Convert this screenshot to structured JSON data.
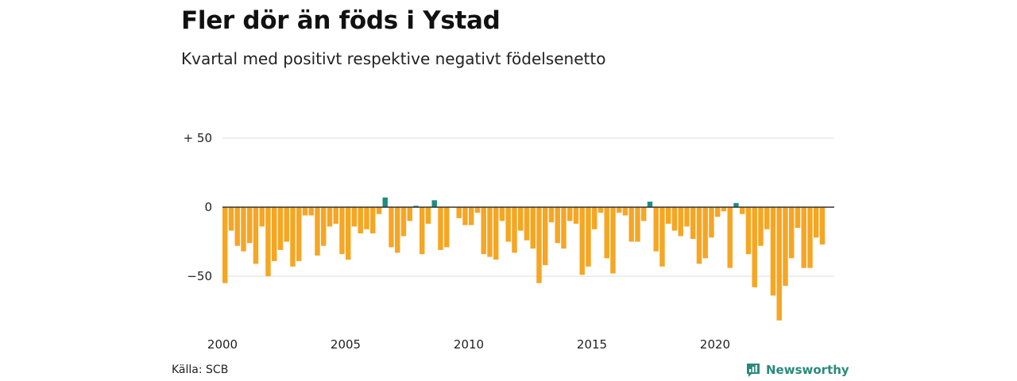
{
  "header": {
    "title": "Fler dör än föds i Ystad",
    "subtitle": "Kvartal med positivt respektive negativt födelsenetto"
  },
  "footer": {
    "source": "Källa: SCB",
    "brand": "Newsworthy"
  },
  "colors": {
    "negative": "#F5A623",
    "positive": "#1E8C82",
    "grid": "#DDDDDD",
    "zero_line": "#333333",
    "brand": "#2A8A7A"
  },
  "chart_data": {
    "type": "bar",
    "ylim": [
      -85,
      55
    ],
    "y_ticks": [
      {
        "value": 50,
        "label": "+ 50"
      },
      {
        "value": 0,
        "label": "0"
      },
      {
        "value": -50,
        "label": "−50"
      }
    ],
    "x_ticks": [
      {
        "year": 2000,
        "label": "2000"
      },
      {
        "year": 2005,
        "label": "2005"
      },
      {
        "year": 2010,
        "label": "2010"
      },
      {
        "year": 2015,
        "label": "2015"
      },
      {
        "year": 2020,
        "label": "2020"
      }
    ],
    "start_year": 2000,
    "periods_per_year": 4,
    "grid": true,
    "legend": "none",
    "values": [
      -55,
      -17,
      -28,
      -32,
      -26,
      -41,
      -14,
      -50,
      -39,
      -31,
      -25,
      -43,
      -39,
      -6,
      -6,
      -35,
      -28,
      -14,
      -12,
      -34,
      -38,
      -14,
      -19,
      -16,
      -19,
      -5,
      7,
      -29,
      -33,
      -21,
      -10,
      1,
      -34,
      -12,
      5,
      -31,
      -29,
      0,
      -8,
      -13,
      -13,
      -4,
      -34,
      -36,
      -38,
      -10,
      -25,
      -33,
      -17,
      -24,
      -30,
      -55,
      -42,
      -11,
      -26,
      -30,
      -10,
      -12,
      -49,
      -43,
      -16,
      -4,
      -37,
      -48,
      -4,
      -6,
      -25,
      -25,
      -10,
      4,
      -32,
      -43,
      -12,
      -17,
      -21,
      -14,
      -23,
      -41,
      -37,
      -22,
      -7,
      -3,
      -44,
      3,
      -5,
      -34,
      -58,
      -28,
      -16,
      -64,
      -82,
      -57,
      -37,
      -15,
      -44,
      -44,
      -22,
      -27
    ]
  }
}
